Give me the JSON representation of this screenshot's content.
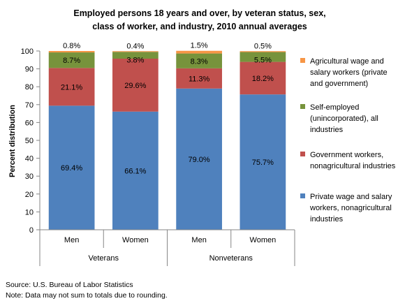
{
  "chart_data": {
    "type": "bar",
    "stacked": true,
    "title": [
      "Employed persons 18 years and over, by veteran status, sex,",
      "class of worker, and industry, 2010 annual averages"
    ],
    "ylabel": "Percent distribution",
    "ylim": [
      0,
      100
    ],
    "yticks": [
      0,
      10,
      20,
      30,
      40,
      50,
      60,
      70,
      80,
      90,
      100
    ],
    "categories": [
      "Men",
      "Women",
      "Men",
      "Women"
    ],
    "groups": [
      {
        "label": "Veterans",
        "categories": [
          0,
          1
        ]
      },
      {
        "label": "Nonveterans",
        "categories": [
          2,
          3
        ]
      }
    ],
    "series": [
      {
        "name": "Private wage and salary workers, nonagricultural industries",
        "legend_lines": [
          "Private wage and salary",
          "workers, nonagricultural",
          "industries"
        ],
        "color": "#4F81BD",
        "values": [
          69.4,
          66.1,
          79.0,
          75.7
        ],
        "labels": [
          "69.4%",
          "66.1%",
          "79.0%",
          "75.7%"
        ]
      },
      {
        "name": "Government workers, nonagricultural industries",
        "legend_lines": [
          "Government workers,",
          "nonagricultural industries"
        ],
        "color": "#C0504D",
        "values": [
          21.1,
          29.6,
          11.3,
          18.2
        ],
        "labels": [
          "21.1%",
          "29.6%",
          "11.3%",
          "18.2%"
        ]
      },
      {
        "name": "Self-employed (unincorporated), all industries",
        "legend_lines": [
          "Self-employed",
          "(unincorporated), all",
          "industries"
        ],
        "color": "#77933C",
        "values": [
          8.7,
          3.8,
          8.3,
          5.5
        ],
        "labels": [
          "8.7%",
          "3.8%",
          "8.3%",
          "5.5%"
        ]
      },
      {
        "name": "Agricultural wage and salary workers (private and government)",
        "legend_lines": [
          "Agricultural wage and",
          "salary workers (private",
          "and government)"
        ],
        "color": "#F79646",
        "values": [
          0.8,
          0.4,
          1.5,
          0.5
        ],
        "labels": [
          "0.8%",
          "0.4%",
          "1.5%",
          "0.5%"
        ]
      }
    ],
    "legend_position": "right",
    "grid": false
  },
  "footnotes": {
    "source": "Source: U.S. Bureau of Labor Statistics",
    "note": "Note: Data may not sum to totals due to rounding."
  }
}
